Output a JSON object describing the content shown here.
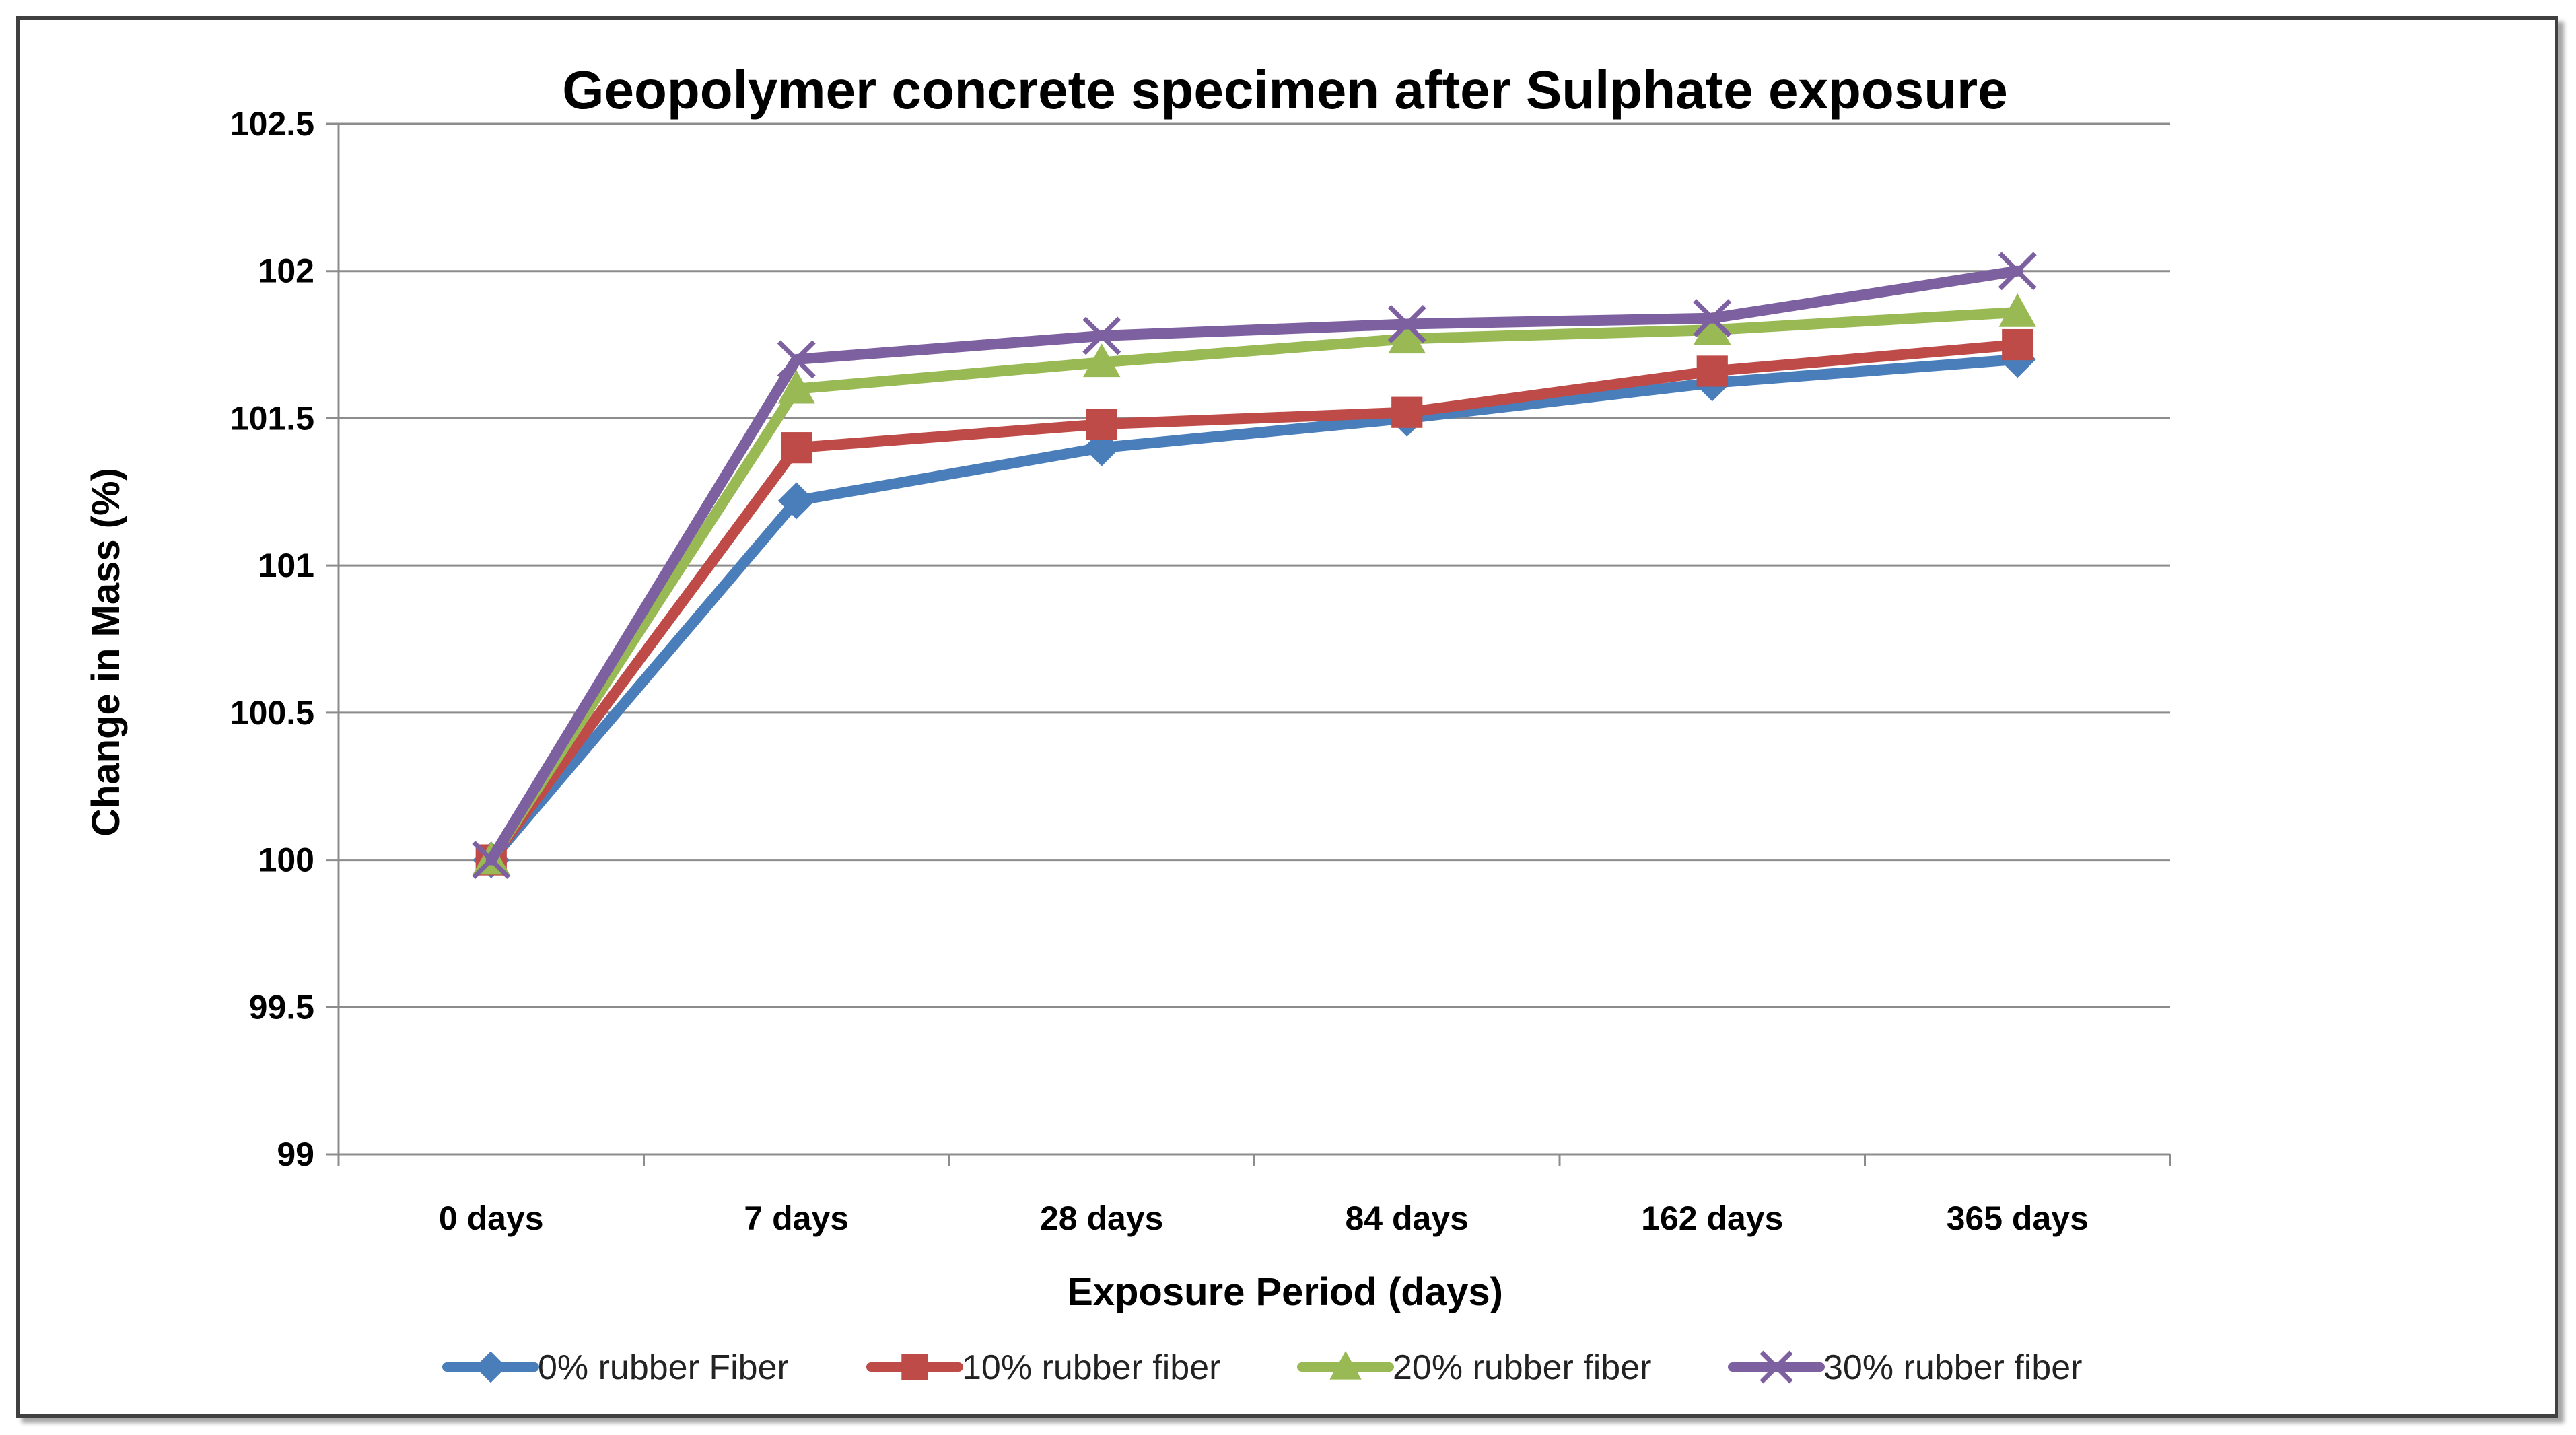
{
  "chart_data": {
    "type": "line",
    "title": "Geopolymer  concrete specimen after Sulphate  exposure",
    "xlabel": "Exposure Period (days)",
    "ylabel": "Change in Mass (%)",
    "categories": [
      "0 days",
      "7 days",
      "28 days",
      "84 days",
      "162 days",
      "365 days"
    ],
    "ylim": [
      99,
      102.5
    ],
    "yticks": [
      "99",
      "99.5",
      "100",
      "100.5",
      "101",
      "101.5",
      "102",
      "102.5"
    ],
    "grid": true,
    "legend_position": "bottom",
    "series": [
      {
        "name": "0% rubber Fiber",
        "color": "#4a7ebb",
        "marker": "diamond",
        "values": [
          100,
          101.22,
          101.4,
          101.5,
          101.62,
          101.7
        ]
      },
      {
        "name": "10% rubber fiber",
        "color": "#be4b48",
        "marker": "square",
        "values": [
          100,
          101.4,
          101.48,
          101.52,
          101.66,
          101.75
        ]
      },
      {
        "name": "20% rubber fiber",
        "color": "#98b954",
        "marker": "triangle",
        "values": [
          100,
          101.6,
          101.69,
          101.77,
          101.8,
          101.86
        ]
      },
      {
        "name": "30% rubber fiber",
        "color": "#7d60a0",
        "marker": "x",
        "values": [
          100,
          101.7,
          101.78,
          101.82,
          101.84,
          102
        ]
      }
    ]
  }
}
